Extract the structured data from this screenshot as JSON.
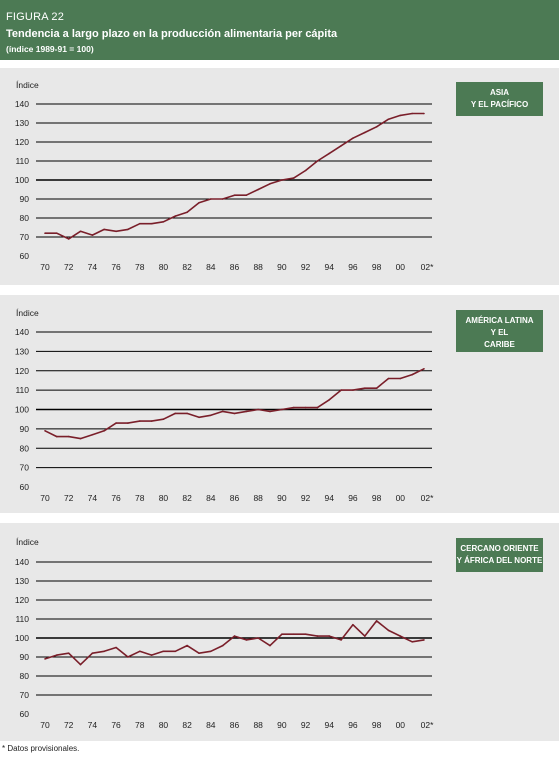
{
  "figure_label": "FIGURA 22",
  "title": "Tendencia a largo plazo en la producción alimentaria per cápita",
  "subtitle": "(índice 1989-91 = 100)",
  "footnote": "* Datos provisionales.",
  "colors": {
    "header_bg": "#4c7a54",
    "panel_bg": "#e8e8e8",
    "line": "#7a1f2a",
    "grid": "#000000"
  },
  "chart_data": [
    {
      "type": "line",
      "region_lines": [
        "ASIA",
        "Y EL PACÍFICO"
      ],
      "ylabel": "Índice",
      "ylim": [
        60,
        140
      ],
      "yticks": [
        "60",
        "70",
        "80",
        "90",
        "100",
        "110",
        "120",
        "130",
        "140"
      ],
      "xticks": [
        "70",
        "72",
        "74",
        "76",
        "78",
        "80",
        "82",
        "84",
        "86",
        "88",
        "90",
        "92",
        "94",
        "96",
        "98",
        "00",
        "02*"
      ],
      "x": [
        1970,
        1971,
        1972,
        1973,
        1974,
        1975,
        1976,
        1977,
        1978,
        1979,
        1980,
        1981,
        1982,
        1983,
        1984,
        1985,
        1986,
        1987,
        1988,
        1989,
        1990,
        1991,
        1992,
        1993,
        1994,
        1995,
        1996,
        1997,
        1998,
        1999,
        2000,
        2001,
        2002
      ],
      "values": [
        72,
        72,
        69,
        73,
        71,
        74,
        73,
        74,
        77,
        77,
        78,
        81,
        83,
        88,
        90,
        90,
        92,
        92,
        95,
        98,
        100,
        101,
        105,
        110,
        114,
        118,
        122,
        125,
        128,
        132,
        134,
        135,
        135
      ]
    },
    {
      "type": "line",
      "region_lines": [
        "AMÉRICA LATINA",
        "Y EL",
        "CARIBE"
      ],
      "ylabel": "Índice",
      "ylim": [
        60,
        140
      ],
      "yticks": [
        "60",
        "70",
        "80",
        "90",
        "100",
        "110",
        "120",
        "130",
        "140"
      ],
      "xticks": [
        "70",
        "72",
        "74",
        "76",
        "78",
        "80",
        "82",
        "84",
        "86",
        "88",
        "90",
        "92",
        "94",
        "96",
        "98",
        "00",
        "02*"
      ],
      "x": [
        1970,
        1971,
        1972,
        1973,
        1974,
        1975,
        1976,
        1977,
        1978,
        1979,
        1980,
        1981,
        1982,
        1983,
        1984,
        1985,
        1986,
        1987,
        1988,
        1989,
        1990,
        1991,
        1992,
        1993,
        1994,
        1995,
        1996,
        1997,
        1998,
        1999,
        2000,
        2001,
        2002
      ],
      "values": [
        89,
        86,
        86,
        85,
        87,
        89,
        93,
        93,
        94,
        94,
        95,
        98,
        98,
        96,
        97,
        99,
        98,
        99,
        100,
        99,
        100,
        101,
        101,
        101,
        105,
        110,
        110,
        111,
        111,
        116,
        116,
        118,
        121
      ]
    },
    {
      "type": "line",
      "region_lines": [
        "CERCANO ORIENTE",
        "Y ÁFRICA DEL NORTE"
      ],
      "ylabel": "Índice",
      "ylim": [
        60,
        140
      ],
      "yticks": [
        "60",
        "70",
        "80",
        "90",
        "100",
        "110",
        "120",
        "130",
        "140"
      ],
      "xticks": [
        "70",
        "72",
        "74",
        "76",
        "78",
        "80",
        "82",
        "84",
        "86",
        "88",
        "90",
        "92",
        "94",
        "96",
        "98",
        "00",
        "02*"
      ],
      "x": [
        1970,
        1971,
        1972,
        1973,
        1974,
        1975,
        1976,
        1977,
        1978,
        1979,
        1980,
        1981,
        1982,
        1983,
        1984,
        1985,
        1986,
        1987,
        1988,
        1989,
        1990,
        1991,
        1992,
        1993,
        1994,
        1995,
        1996,
        1997,
        1998,
        1999,
        2000,
        2001,
        2002
      ],
      "values": [
        89,
        91,
        92,
        86,
        92,
        93,
        95,
        90,
        93,
        91,
        93,
        93,
        96,
        92,
        93,
        96,
        101,
        99,
        100,
        96,
        102,
        102,
        102,
        101,
        101,
        99,
        107,
        101,
        109,
        104,
        101,
        98,
        99
      ]
    }
  ]
}
